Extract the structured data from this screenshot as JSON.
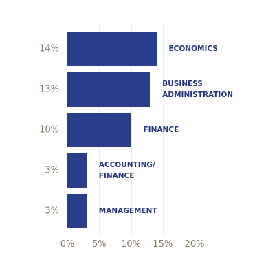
{
  "chart_data": {
    "type": "bar",
    "orientation": "horizontal",
    "categories": [
      "ECONOMICS",
      "BUSINESS ADMINISTRATION",
      "FINANCE",
      "ACCOUNTING/ FINANCE",
      "MANAGEMENT"
    ],
    "values": [
      14,
      13,
      10,
      3,
      3
    ],
    "value_labels": [
      "14%",
      "13%",
      "10%",
      "3%",
      "3%"
    ],
    "color": "#2a3f8c",
    "xlim": [
      0,
      20
    ],
    "xticks": [
      {
        "value": 0,
        "label": "0%"
      },
      {
        "value": 5,
        "label": "5%"
      },
      {
        "value": 10,
        "label": "10%"
      },
      {
        "value": 15,
        "label": "15%"
      },
      {
        "value": 20,
        "label": "20%"
      }
    ],
    "grid": true
  }
}
